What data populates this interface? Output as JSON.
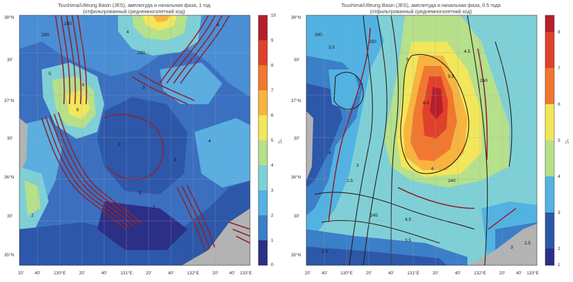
{
  "maps": [
    {
      "title_line1": "Tsushima/Ulleung Basin (JES), амплитуда и начальная фаза, 1 год",
      "title_line2": "(отфильтрованный среднемноголетний ход)",
      "lat_labels": [
        "38°N",
        "30'",
        "37°N",
        "30'",
        "36°N",
        "30'",
        "35°N"
      ],
      "lon_labels": [
        "20'",
        "40'",
        "130°E",
        "20'",
        "40'",
        "131°E",
        "20'",
        "40'",
        "132°E",
        "20'",
        "40'",
        "133°E"
      ],
      "colorbar_ticks": [
        "10",
        "9",
        "8",
        "7",
        "6",
        "5",
        "4",
        "3",
        "2",
        "1",
        "0"
      ],
      "unit": "°C",
      "contour_labels": [
        "150",
        "200",
        "4",
        "6",
        "5",
        "3",
        "2",
        "1",
        "6",
        "5",
        "4",
        "200",
        "3",
        "2",
        "4"
      ],
      "amplitude_scale": {
        "min": 0,
        "max": 10
      }
    },
    {
      "title_line1": "Tsushima/Ulleung Basin (JES), амплитуда и начальная фаза, 0.5 года",
      "title_line2": "(отфильтрованный среднемноголетний ход)",
      "lat_labels": [
        "38°N",
        "30'",
        "37°N",
        "30'",
        "36°N",
        "30'",
        "35°N"
      ],
      "lon_labels": [
        "20'",
        "40'",
        "130°E",
        "20'",
        "40'",
        "131°E",
        "20'",
        "40'",
        "132°E",
        "20'",
        "40'",
        "133°E"
      ],
      "colorbar_ticks": [
        "8",
        "7",
        "6",
        "5",
        "4",
        "3",
        "2",
        "1"
      ],
      "unit": "°C",
      "contour_labels": [
        "200",
        "3.5",
        "250",
        "4.5",
        "5.5",
        "6.5",
        "5",
        "6",
        "4",
        "3",
        "2.5",
        "245",
        "240",
        "4.5",
        "3.5",
        "3",
        "2.5",
        "3.5",
        "260"
      ],
      "amplitude_scale": {
        "min": 1,
        "max": 8
      }
    }
  ],
  "colors": {
    "ramp": [
      "#2b2f86",
      "#2d57a8",
      "#3b7fc8",
      "#52b3e2",
      "#7fd0d6",
      "#b6e08a",
      "#f2e65a",
      "#f8b43e",
      "#f07830",
      "#e0412a",
      "#b51f2a"
    ],
    "contour": "#8c2431",
    "land": "#b3b3b3"
  }
}
